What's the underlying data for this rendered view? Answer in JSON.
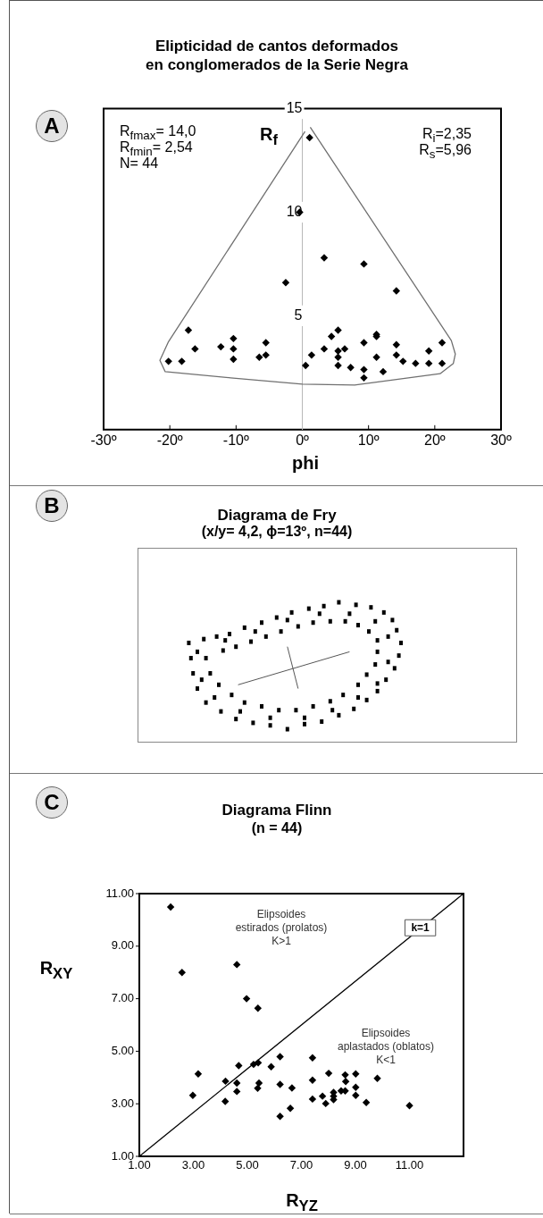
{
  "chart_data": [
    {
      "type": "scatter",
      "title": "Elipticidad de cantos deformados\nen conglomerados de la Serie Negra",
      "xlabel": "phi",
      "ylabel": "R$_{f}$",
      "xlim": [
        -30,
        30
      ],
      "xticks": [
        {
          "value": -30,
          "label": "-30º"
        },
        {
          "value": -20,
          "label": "-20º"
        },
        {
          "value": -10,
          "label": "-10º"
        },
        {
          "value": 0,
          "label": "0º"
        },
        {
          "value": 10,
          "label": "10º"
        },
        {
          "value": 20,
          "label": "20º"
        },
        {
          "value": 30,
          "label": "30º"
        }
      ],
      "ylim": [
        -0.5,
        15
      ],
      "yticks": [
        5,
        10,
        15
      ],
      "marker": "diamond",
      "annotations": [
        "A",
        "R$_{fmax}$= 14,0",
        "R$_{fmin}$= 2,54",
        "N= 44",
        "R$_{i}$=2,35",
        "R$_{s}$=5,96"
      ],
      "series": [
        {
          "color": "#000000",
          "x": [
            -0.4,
            -2.5,
            3.3,
            9.3,
            14.2,
            -17.2,
            -16.2,
            -20.2,
            -18.2,
            -12.3,
            -10.4,
            -10.4,
            -10.4,
            -5.5,
            -5.5,
            -6.5,
            0.5,
            1.4,
            3.3,
            4.4,
            5.4,
            5.4,
            6.4,
            5.4,
            5.4,
            7.3,
            9.3,
            9.3,
            9.3,
            11.2,
            11.2,
            11.2,
            12.2,
            14.2,
            14.2,
            15.2,
            17.1,
            19.1,
            19.1,
            21.1,
            21.1,
            1.1
          ],
          "values": [
            10.0,
            6.6,
            7.8,
            7.5,
            6.2,
            4.3,
            3.4,
            2.8,
            2.8,
            3.5,
            3.9,
            3.4,
            2.9,
            3.7,
            3.1,
            3.0,
            2.6,
            3.1,
            3.4,
            4.0,
            4.3,
            3.3,
            3.4,
            3.0,
            2.6,
            2.5,
            3.7,
            2.4,
            2.0,
            4.1,
            4.0,
            3.0,
            2.3,
            3.6,
            3.1,
            2.8,
            2.7,
            3.3,
            2.7,
            3.7,
            2.7,
            13.6
          ]
        },
        {
          "type": "line",
          "color": "#707070",
          "marker": "none",
          "x": [
            1.2,
            22.5,
            23.1,
            22.8,
            20.8,
            7.9,
            0,
            -10.8,
            -20.7,
            -21.5,
            -20.2,
            0.4
          ],
          "values": [
            14.1,
            3.8,
            3.15,
            2.7,
            2.2,
            1.65,
            1.7,
            2.0,
            2.3,
            2.85,
            3.75,
            13.9
          ]
        }
      ]
    },
    {
      "type": "other",
      "title": "Diagrama de  Fry",
      "subtitle": "(x/y= 4,2, ϕ=13º, n=44)",
      "annotations": [
        "B"
      ]
    },
    {
      "type": "scatter",
      "title": "Diagrama  Flinn",
      "subtitle": "(n = 44)",
      "xlabel": "R$_{YZ}$",
      "ylabel": "R$_{XY}$",
      "xlim": [
        1,
        13
      ],
      "xticks": [
        {
          "value": 1,
          "label": "1.00"
        },
        {
          "value": 3,
          "label": "3.00"
        },
        {
          "value": 5,
          "label": "5.00"
        },
        {
          "value": 7,
          "label": "7.00"
        },
        {
          "value": 9,
          "label": "9.00"
        },
        {
          "value": 11,
          "label": "11.00"
        }
      ],
      "ylim": [
        1,
        11
      ],
      "yticks": [
        {
          "value": 1,
          "label": "1.00"
        },
        {
          "value": 3,
          "label": "3.00"
        },
        {
          "value": 5,
          "label": "5.00"
        },
        {
          "value": 7,
          "label": "7.00"
        },
        {
          "value": 9,
          "label": "9.00"
        },
        {
          "value": 11,
          "label": "11.00"
        }
      ],
      "marker": "diamond",
      "annotations": [
        "C",
        "Elipsoides\nestirados (prolatos)\nK>1",
        "Elipsoides\naplastados (oblatos)\nK<1",
        {
          "text": "k=1",
          "x": 11.4,
          "y": 9.7
        }
      ],
      "series": [
        {
          "color": "#000000",
          "x": [
            2.16,
            2.58,
            4.61,
            4.97,
            5.39,
            6.21,
            7.41,
            4.68,
            5.23,
            5.4,
            5.88,
            3.18,
            4.19,
            4.61,
            5.43,
            6.21,
            7.41,
            8.01,
            8.62,
            8.64,
            9.01,
            9.81,
            9.01,
            6.65,
            5.38,
            4.61,
            2.98,
            9.01,
            8.19,
            8.19,
            8.19,
            8.47,
            8.62,
            7.78,
            7.41,
            7.9,
            9.4,
            11.0,
            4.18,
            6.59,
            6.21
          ],
          "values": [
            10.49,
            8.0,
            8.3,
            7.0,
            6.64,
            4.79,
            4.75,
            4.45,
            4.5,
            4.56,
            4.41,
            4.14,
            3.86,
            3.79,
            3.79,
            3.74,
            3.9,
            4.16,
            4.1,
            3.85,
            4.14,
            3.97,
            3.63,
            3.6,
            3.59,
            3.47,
            3.32,
            3.32,
            3.43,
            3.29,
            3.16,
            3.49,
            3.49,
            3.29,
            3.18,
            3.01,
            3.05,
            2.93,
            3.09,
            2.83,
            2.52
          ]
        },
        {
          "type": "line",
          "color": "#000000",
          "marker": "none",
          "x": [
            1,
            13
          ],
          "values": [
            1,
            11
          ]
        }
      ]
    }
  ]
}
